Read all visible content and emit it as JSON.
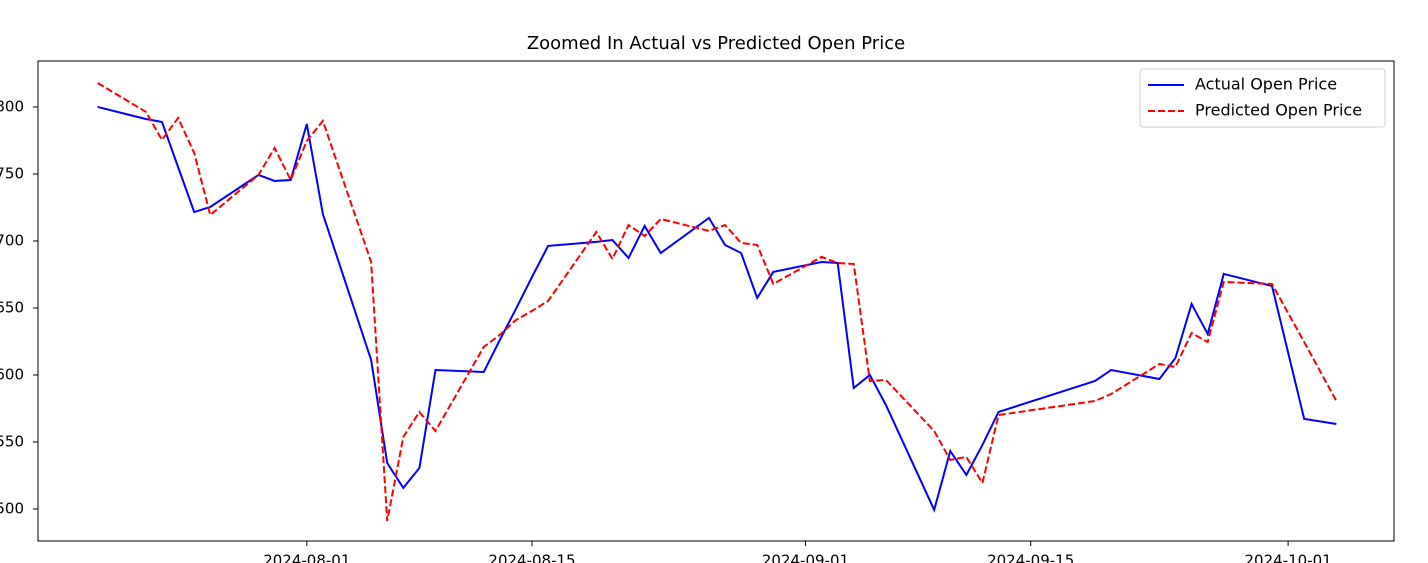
{
  "chart_data": {
    "type": "line",
    "title": "Zoomed In Actual vs Predicted Open Price",
    "x": [
      "2024-07-19",
      "2024-07-22",
      "2024-07-23",
      "2024-07-24",
      "2024-07-25",
      "2024-07-26",
      "2024-07-29",
      "2024-07-30",
      "2024-07-31",
      "2024-08-01",
      "2024-08-02",
      "2024-08-05",
      "2024-08-06",
      "2024-08-07",
      "2024-08-08",
      "2024-08-09",
      "2024-08-12",
      "2024-08-13",
      "2024-08-14",
      "2024-08-15",
      "2024-08-16",
      "2024-08-19",
      "2024-08-20",
      "2024-08-21",
      "2024-08-22",
      "2024-08-23",
      "2024-08-26",
      "2024-08-27",
      "2024-08-28",
      "2024-08-29",
      "2024-08-30",
      "2024-09-02",
      "2024-09-03",
      "2024-09-04",
      "2024-09-05",
      "2024-09-06",
      "2024-09-09",
      "2024-09-10",
      "2024-09-11",
      "2024-09-12",
      "2024-09-13",
      "2024-09-19",
      "2024-09-20",
      "2024-09-23",
      "2024-09-24",
      "2024-09-25",
      "2024-09-26",
      "2024-09-27",
      "2024-09-30",
      "2024-10-02",
      "2024-10-04"
    ],
    "series": [
      {
        "name": "Actual Open Price",
        "color": "#0000ff",
        "dash": "solid",
        "values": [
          800,
          791.0,
          788.8,
          755.2,
          721.6,
          725.4,
          749.3,
          744.8,
          745.5,
          787.3,
          720.1,
          611.2,
          534.3,
          515.7,
          530.6,
          603.7,
          602.2,
          626.1,
          649.3,
          673.1,
          696.3,
          699.3,
          700.7,
          687.3,
          711.2,
          691.0,
          717.2,
          697.0,
          691.0,
          657.5,
          676.9,
          684.3,
          683.6,
          590.3,
          600.0,
          577.6,
          499.3,
          543.3,
          525.4,
          547.8,
          572.4,
          595.5,
          603.7,
          597.0,
          612.7,
          653.0,
          630.6,
          675.4,
          666.4,
          567.2,
          563.4
        ]
      },
      {
        "name": "Predicted Open Price",
        "color": "#ff0000",
        "dash": "dashed",
        "values": [
          817.9,
          796.3,
          775.4,
          791.8,
          765.7,
          719.4,
          749.3,
          769.4,
          745.5,
          774.6,
          789.6,
          684.3,
          491.0,
          553.7,
          572.4,
          558.2,
          620.9,
          629.9,
          641.0,
          647.8,
          655.2,
          706.7,
          686.6,
          711.9,
          703.7,
          716.4,
          707.5,
          711.9,
          698.5,
          697.0,
          667.9,
          688.1,
          683.6,
          682.8,
          595.5,
          596.3,
          558.2,
          536.6,
          538.8,
          519.4,
          570.1,
          580.6,
          585.8,
          608.2,
          606.0,
          631.3,
          624.6,
          669.4,
          667.9,
          624.6,
          580.6
        ]
      }
    ],
    "xlim": [
      "2024-07-15T07:00",
      "2024-10-07T14:00"
    ],
    "xticks": [
      "2024-08-01",
      "2024-08-15",
      "2024-09-01",
      "2024-09-15",
      "2024-10-01"
    ],
    "ylim": [
      476.1,
      834.3
    ],
    "yticks": [
      500,
      550,
      600,
      650,
      700,
      750,
      800
    ],
    "legend": "upper right",
    "grid": false
  }
}
